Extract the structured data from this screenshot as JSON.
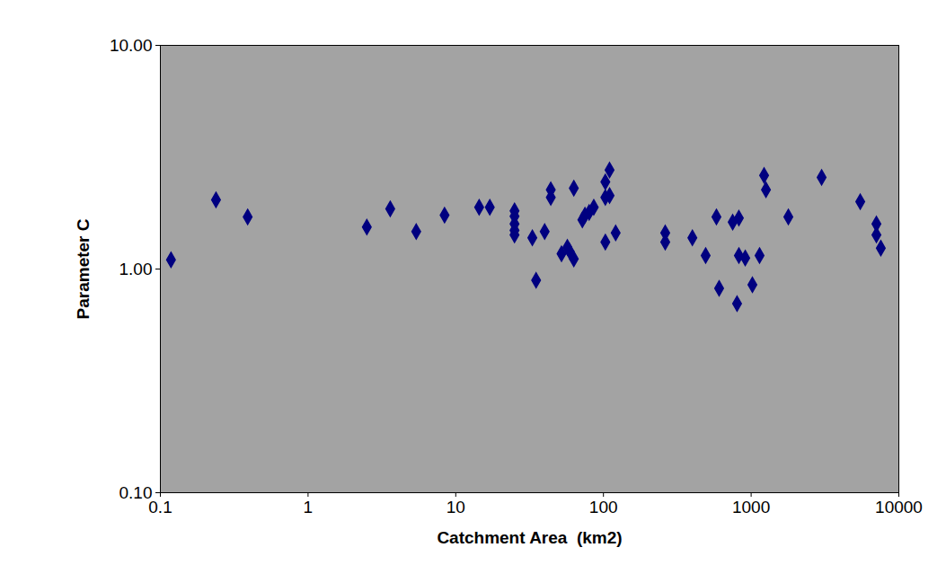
{
  "chart_data": {
    "type": "scatter",
    "x_label": "Catchment Area  (km2)",
    "y_label": "Parameter C",
    "log": true,
    "grid": false,
    "marker": "diamond",
    "color": "#000080",
    "xlim": [
      0.1,
      10000
    ],
    "xticks": [
      0.1,
      1,
      10,
      100,
      1000,
      10000
    ],
    "ylim": [
      0.1,
      10
    ],
    "yticks": [
      {
        "value": 0.1,
        "label": "0.10"
      },
      {
        "value": 1,
        "label": "1.00"
      },
      {
        "value": 10,
        "label": "10.00"
      }
    ],
    "x": [
      0.118,
      0.238,
      0.39,
      2.5,
      3.6,
      5.4,
      8.4,
      14.4,
      17,
      25,
      25,
      25,
      25,
      25,
      33,
      40,
      35,
      44,
      44,
      52,
      57,
      59,
      63,
      63,
      72,
      75,
      80,
      86,
      103,
      110,
      103,
      110,
      103,
      121,
      262,
      262,
      400,
      492,
      582,
      607,
      750,
      826,
      826,
      803,
      912,
      1020,
      1140,
      1224,
      1260,
      1786,
      3000,
      5480,
      7050,
      7050,
      7550
    ],
    "values": [
      1.1,
      2.04,
      1.71,
      1.54,
      1.86,
      1.47,
      1.74,
      1.89,
      1.89,
      1.82,
      1.72,
      1.59,
      1.42,
      1.49,
      1.38,
      1.47,
      0.89,
      2.26,
      2.09,
      1.17,
      1.25,
      1.2,
      1.11,
      2.3,
      1.66,
      1.74,
      1.79,
      1.89,
      2.45,
      2.13,
      2.09,
      2.77,
      1.32,
      1.45,
      1.45,
      1.32,
      1.38,
      1.15,
      1.71,
      0.82,
      1.62,
      1.69,
      1.15,
      0.7,
      1.12,
      0.85,
      1.15,
      2.62,
      2.26,
      1.71,
      2.57,
      2.0,
      1.59,
      1.42,
      1.24
    ]
  }
}
